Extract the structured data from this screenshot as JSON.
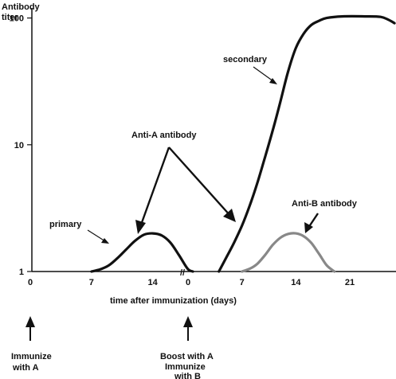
{
  "chart_data": {
    "type": "line",
    "ylabel_lines": [
      "Antibody",
      "titer"
    ],
    "xlabel": "time after immunization (days)",
    "y_scale": "log",
    "ylim": [
      1,
      120
    ],
    "y_ticks": [
      {
        "value": 1,
        "label": "1"
      },
      {
        "value": 10,
        "label": "10"
      },
      {
        "value": 100,
        "label": "100"
      }
    ],
    "x_segments": [
      {
        "xlim": [
          0,
          17.5
        ],
        "ticks": [
          {
            "value": 0,
            "label": "0"
          },
          {
            "value": 7,
            "label": "7"
          },
          {
            "value": 14,
            "label": "14"
          }
        ]
      },
      {
        "xlim": [
          0,
          27
        ],
        "ticks": [
          {
            "value": 0,
            "label": "0"
          },
          {
            "value": 7,
            "label": "7"
          },
          {
            "value": 14,
            "label": "14"
          },
          {
            "value": 21,
            "label": "21"
          }
        ]
      }
    ],
    "axis_break": "//",
    "series": [
      {
        "segment": 0,
        "color": "#111111",
        "points": [
          [
            7,
            1.0
          ],
          [
            8,
            1.04
          ],
          [
            9,
            1.12
          ],
          [
            10,
            1.28
          ],
          [
            11,
            1.5
          ],
          [
            12,
            1.75
          ],
          [
            13,
            1.95
          ],
          [
            14,
            2.0
          ],
          [
            15,
            1.93
          ],
          [
            16,
            1.7
          ],
          [
            17,
            1.35
          ],
          [
            18,
            1.05
          ],
          [
            18.6,
            1.0
          ]
        ]
      },
      {
        "segment": 1,
        "color": "#111111",
        "points": [
          [
            4,
            1.0
          ],
          [
            5,
            1.3
          ],
          [
            6,
            1.7
          ],
          [
            7,
            2.3
          ],
          [
            8,
            3.3
          ],
          [
            9,
            5.0
          ],
          [
            10,
            8.0
          ],
          [
            11,
            13
          ],
          [
            12,
            22
          ],
          [
            13,
            38
          ],
          [
            14,
            58
          ],
          [
            15,
            75
          ],
          [
            16,
            88
          ],
          [
            17,
            95
          ],
          [
            18,
            100
          ],
          [
            20,
            103
          ],
          [
            23,
            103
          ],
          [
            25,
            102
          ],
          [
            26,
            97
          ],
          [
            26.8,
            91
          ]
        ]
      },
      {
        "segment": 1,
        "color": "#888888",
        "points": [
          [
            7,
            1.0
          ],
          [
            8,
            1.05
          ],
          [
            9,
            1.15
          ],
          [
            10,
            1.35
          ],
          [
            11,
            1.62
          ],
          [
            12,
            1.85
          ],
          [
            13,
            1.98
          ],
          [
            14,
            2.0
          ],
          [
            15,
            1.9
          ],
          [
            16,
            1.68
          ],
          [
            17,
            1.38
          ],
          [
            18,
            1.12
          ],
          [
            19,
            1.0
          ]
        ]
      }
    ],
    "annotations": {
      "anti_a": "Anti-A antibody",
      "primary": "primary",
      "secondary": "secondary",
      "anti_b": "Anti-B antibody"
    },
    "events": [
      {
        "lines": [
          "Immunize",
          "with A"
        ]
      },
      {
        "lines": [
          "Boost with A",
          "Immunize",
          "with B"
        ]
      }
    ]
  }
}
